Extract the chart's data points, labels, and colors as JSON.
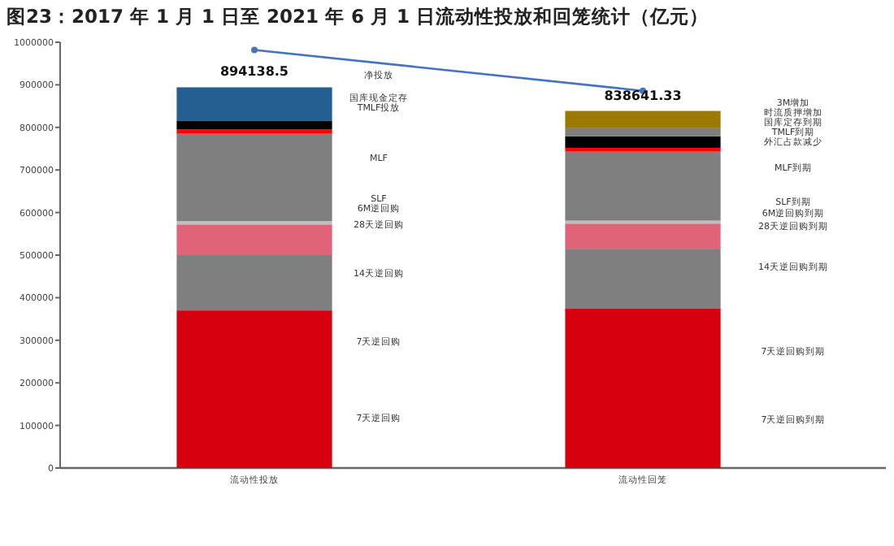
{
  "chart_data": {
    "type": "bar",
    "stacked": true,
    "title": "图23：2017 年 1 月 1 日至 2021 年 6 月 1 日流动性投放和回笼统计（亿元）",
    "categories": [
      "流动性投放",
      "流动性回笼"
    ],
    "ylim": [
      0,
      1000000
    ],
    "yticks": [
      0,
      100000,
      200000,
      300000,
      400000,
      500000,
      600000,
      700000,
      800000,
      900000,
      1000000
    ],
    "series": [
      {
        "color": "#d7000f",
        "values": [
          370000,
          374000
        ]
      },
      {
        "color": "#7f7f7f",
        "values": [
          130000,
          141000
        ]
      },
      {
        "color": "#e06377",
        "values": [
          72000,
          59000
        ]
      },
      {
        "color": "#bfbfbf",
        "values": [
          8000,
          7000
        ]
      },
      {
        "color": "#7f7f7f",
        "values": [
          205000,
          162000
        ]
      },
      {
        "color": "#ff0000",
        "values": [
          10000,
          9000
        ]
      },
      {
        "color": "#000000",
        "values": [
          20000,
          27000
        ]
      },
      {
        "color": "#7f7f7f",
        "values": [
          null,
          19000
        ]
      },
      {
        "color": "#255e91",
        "values": [
          79138.5,
          null
        ]
      },
      {
        "color": "#9c7a00",
        "values": [
          null,
          40641.33
        ]
      },
      {
        "type": "line",
        "color": "#4472c4",
        "marker": "circle",
        "values": [
          982000,
          886000
        ]
      }
    ],
    "totals": [
      "894138.5",
      "838641.33"
    ],
    "annotations": [
      "净投放",
      "国库现金定存",
      "TMLF投放",
      "MLF",
      "SLF",
      "6M逆回购",
      "28天逆回购",
      "14天逆回购",
      "7天逆回购",
      "7天逆回购",
      "3M增加",
      "时流质押增加",
      "国库定存到期",
      "TMLF到期",
      "外汇占款减少",
      "MLF到期",
      "SLF到期",
      "6M逆回购到期",
      "28天逆回购到期",
      "14天逆回购到期",
      "7天逆回购到期",
      "7天逆回购到期"
    ]
  }
}
